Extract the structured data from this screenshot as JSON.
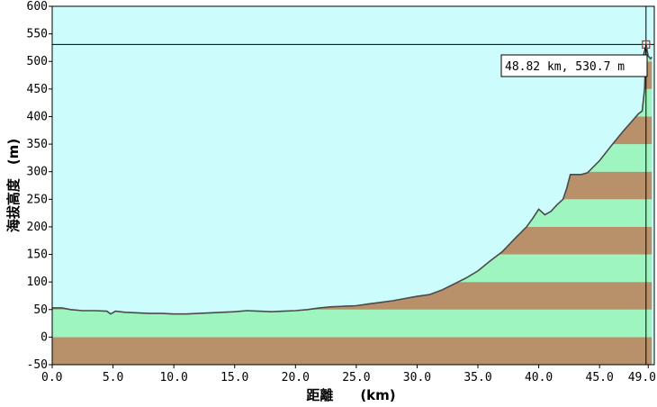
{
  "chart_data": {
    "type": "area",
    "xlabel": "距離　　(km)",
    "ylabel": "海拔高度　(m)",
    "xlim": [
      0,
      49.5
    ],
    "ylim": [
      -50,
      600
    ],
    "x_ticks": [
      0,
      5,
      10,
      15,
      20,
      25,
      30,
      35,
      40,
      45,
      49
    ],
    "x_tick_labels": [
      "0.0",
      "5.0",
      "10.0",
      "15.0",
      "20.0",
      "25.0",
      "30.0",
      "35.0",
      "40.0",
      "45.0",
      "49.0"
    ],
    "y_ticks": [
      600,
      550,
      500,
      450,
      400,
      350,
      300,
      250,
      200,
      150,
      100,
      50,
      0,
      -50
    ],
    "y_tick_labels": [
      "600",
      "550",
      "500",
      "450",
      "400",
      "350",
      "300",
      "250",
      "200",
      "150",
      "100",
      "50",
      "0",
      "-50"
    ],
    "band_colors": [
      "#b8916a",
      "#9ef5c0"
    ],
    "sky_color": "#ccfcfc",
    "profile_color": "#4a4a4a",
    "series": [
      {
        "points": [
          [
            0,
            53
          ],
          [
            0.8,
            53
          ],
          [
            1.5,
            50
          ],
          [
            2.5,
            48
          ],
          [
            3.5,
            48
          ],
          [
            4.5,
            47
          ],
          [
            4.8,
            42
          ],
          [
            5.2,
            47
          ],
          [
            6,
            45
          ],
          [
            7,
            44
          ],
          [
            8,
            43
          ],
          [
            9,
            43
          ],
          [
            10,
            42
          ],
          [
            11,
            42
          ],
          [
            12,
            43
          ],
          [
            13,
            44
          ],
          [
            14,
            45
          ],
          [
            15,
            46
          ],
          [
            16,
            48
          ],
          [
            17,
            47
          ],
          [
            18,
            46
          ],
          [
            19,
            47
          ],
          [
            20,
            48
          ],
          [
            21,
            50
          ],
          [
            22,
            53
          ],
          [
            23,
            55
          ],
          [
            24,
            56
          ],
          [
            25,
            57
          ],
          [
            26,
            60
          ],
          [
            27,
            63
          ],
          [
            28,
            66
          ],
          [
            29,
            70
          ],
          [
            30,
            74
          ],
          [
            31,
            77
          ],
          [
            32,
            85
          ],
          [
            33,
            96
          ],
          [
            34,
            107
          ],
          [
            35,
            120
          ],
          [
            36,
            138
          ],
          [
            37,
            155
          ],
          [
            38,
            178
          ],
          [
            39,
            200
          ],
          [
            39.5,
            215
          ],
          [
            40,
            232
          ],
          [
            40.5,
            222
          ],
          [
            41,
            228
          ],
          [
            41.5,
            240
          ],
          [
            42,
            250
          ],
          [
            42.3,
            270
          ],
          [
            42.6,
            295
          ],
          [
            43.5,
            295
          ],
          [
            44,
            298
          ],
          [
            45,
            320
          ],
          [
            46,
            348
          ],
          [
            47,
            375
          ],
          [
            47.6,
            390
          ],
          [
            48.2,
            405
          ],
          [
            48.5,
            410
          ],
          [
            48.7,
            450
          ],
          [
            48.82,
            530.7
          ],
          [
            49.0,
            510
          ],
          [
            49.2,
            505
          ],
          [
            49.3,
            508
          ]
        ]
      }
    ],
    "crosshair": {
      "x": 48.82,
      "y": 530.7,
      "label": "48.82 km,  530.7 m"
    }
  }
}
